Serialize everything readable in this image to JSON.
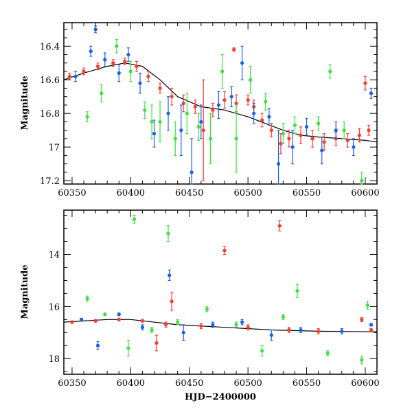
{
  "chart_data": [
    {
      "type": "scatter",
      "panel": "top",
      "title": "",
      "xlabel": "",
      "ylabel": "Magnitude",
      "xlim": [
        60343,
        60610
      ],
      "ylim": [
        17.22,
        16.26
      ],
      "y_inverted": true,
      "x_ticks": [
        60350,
        60400,
        60450,
        60500,
        60550,
        60600
      ],
      "x_tick_labels": [
        "60350",
        "60400",
        "60450",
        "60500",
        "60550",
        "60600"
      ],
      "y_ticks": [
        16.4,
        16.6,
        16.8,
        17.0,
        17.2
      ],
      "y_tick_labels": [
        "16.4",
        "16.6",
        "16.8",
        "17",
        "17.2"
      ],
      "grid": false,
      "trend": {
        "x": [
          60343,
          60360,
          60380,
          60395,
          60410,
          60425,
          60440,
          60460,
          60480,
          60500,
          60515,
          60530,
          60545,
          60560,
          60580,
          60600,
          60610
        ],
        "y": [
          16.6,
          16.56,
          16.52,
          16.5,
          16.52,
          16.6,
          16.7,
          16.76,
          16.78,
          16.82,
          16.86,
          16.9,
          16.93,
          16.94,
          16.95,
          16.96,
          16.97
        ]
      },
      "series": [
        {
          "color": "#ff3a2a",
          "points": [
            [
              60348,
              16.58,
              0.02
            ],
            [
              60360,
              16.55,
              0.02
            ],
            [
              60372,
              16.52,
              0.02
            ],
            [
              60385,
              16.5,
              0.02
            ],
            [
              60395,
              16.49,
              0.02
            ],
            [
              60405,
              16.52,
              0.03
            ],
            [
              60415,
              16.58,
              0.03
            ],
            [
              60425,
              16.65,
              0.03
            ],
            [
              60435,
              16.7,
              0.05
            ],
            [
              60445,
              16.74,
              0.05
            ],
            [
              60455,
              16.76,
              0.04
            ],
            [
              60462,
              16.9,
              0.3
            ],
            [
              60470,
              16.78,
              0.04
            ],
            [
              60480,
              16.72,
              0.05
            ],
            [
              60490,
              16.74,
              0.05
            ],
            [
              60500,
              16.72,
              0.03
            ],
            [
              60505,
              16.76,
              0.04
            ],
            [
              60512,
              16.84,
              0.04
            ],
            [
              60520,
              16.9,
              0.04
            ],
            [
              60528,
              16.98,
              0.06
            ],
            [
              60535,
              16.95,
              0.05
            ],
            [
              60545,
              16.93,
              0.05
            ],
            [
              60555,
              16.95,
              0.05
            ],
            [
              60565,
              16.97,
              0.05
            ],
            [
              60575,
              16.95,
              0.04
            ],
            [
              60585,
              16.96,
              0.04
            ],
            [
              60595,
              16.93,
              0.04
            ],
            [
              60600,
              16.62,
              0.04
            ],
            [
              60603,
              16.9,
              0.03
            ],
            [
              60488,
              16.42,
              0.01
            ]
          ]
        },
        {
          "color": "#1a5fe8",
          "points": [
            [
              60353,
              16.58,
              0.03
            ],
            [
              60366,
              16.43,
              0.03
            ],
            [
              60370,
              16.3,
              0.02
            ],
            [
              60378,
              16.48,
              0.04
            ],
            [
              60390,
              16.56,
              0.05
            ],
            [
              60398,
              16.45,
              0.04
            ],
            [
              60408,
              16.62,
              0.06
            ],
            [
              60420,
              16.92,
              0.08
            ],
            [
              60432,
              16.8,
              0.1
            ],
            [
              60443,
              16.9,
              0.15
            ],
            [
              60452,
              17.15,
              0.2
            ],
            [
              60460,
              16.85,
              0.1
            ],
            [
              60475,
              16.75,
              0.08
            ],
            [
              60486,
              16.7,
              0.06
            ],
            [
              60495,
              16.5,
              0.1
            ],
            [
              60505,
              16.8,
              0.06
            ],
            [
              60518,
              16.82,
              0.05
            ],
            [
              60526,
              17.1,
              0.2
            ],
            [
              60538,
              17.0,
              0.1
            ],
            [
              60550,
              16.88,
              0.05
            ],
            [
              60563,
              17.02,
              0.08
            ],
            [
              60575,
              16.9,
              0.05
            ],
            [
              60590,
              17.0,
              0.05
            ],
            [
              60605,
              16.68,
              0.03
            ]
          ]
        },
        {
          "color": "#3de03d",
          "points": [
            [
              60363,
              16.82,
              0.03
            ],
            [
              60375,
              16.68,
              0.05
            ],
            [
              60388,
              16.4,
              0.04
            ],
            [
              60400,
              16.55,
              0.06
            ],
            [
              60412,
              16.78,
              0.05
            ],
            [
              60418,
              16.85,
              0.1
            ],
            [
              60425,
              16.85,
              0.12
            ],
            [
              60438,
              16.95,
              0.1
            ],
            [
              60448,
              16.8,
              0.12
            ],
            [
              60458,
              16.88,
              0.08
            ],
            [
              60468,
              16.95,
              0.15
            ],
            [
              60478,
              16.55,
              0.1
            ],
            [
              60490,
              16.95,
              0.2
            ],
            [
              60502,
              16.6,
              0.08
            ],
            [
              60515,
              16.73,
              0.05
            ],
            [
              60530,
              16.92,
              0.06
            ],
            [
              60540,
              16.87,
              0.05
            ],
            [
              60560,
              16.86,
              0.04
            ],
            [
              60570,
              16.55,
              0.04
            ],
            [
              60582,
              16.9,
              0.05
            ],
            [
              60597,
              17.2,
              0.05
            ]
          ]
        }
      ]
    },
    {
      "type": "scatter",
      "panel": "bottom",
      "title": "",
      "xlabel": "HJD−2400000",
      "ylabel": "Magnitude",
      "xlim": [
        60343,
        60610
      ],
      "ylim": [
        18.6,
        12.3
      ],
      "y_inverted": true,
      "x_ticks": [
        60350,
        60400,
        60450,
        60500,
        60550,
        60600
      ],
      "x_tick_labels": [
        "60350",
        "60400",
        "60450",
        "60500",
        "60550",
        "60600"
      ],
      "y_ticks": [
        14,
        16,
        18
      ],
      "y_tick_labels": [
        "14",
        "16",
        "18"
      ],
      "grid": false,
      "trend": {
        "x": [
          60343,
          60380,
          60400,
          60440,
          60480,
          60520,
          60560,
          60610
        ],
        "y": [
          16.6,
          16.5,
          16.5,
          16.7,
          16.8,
          16.9,
          16.95,
          16.97
        ]
      },
      "series": [
        {
          "color": "#ff3a2a",
          "points": [
            [
              60350,
              16.6,
              0.05
            ],
            [
              60370,
              16.55,
              0.05
            ],
            [
              60390,
              16.5,
              0.05
            ],
            [
              60410,
              16.55,
              0.05
            ],
            [
              60422,
              17.4,
              0.3
            ],
            [
              60430,
              16.7,
              0.1
            ],
            [
              60435,
              15.8,
              0.35
            ],
            [
              60460,
              16.75,
              0.1
            ],
            [
              60480,
              13.85,
              0.15
            ],
            [
              60500,
              16.8,
              0.1
            ],
            [
              60527,
              12.9,
              0.2
            ],
            [
              60535,
              16.9,
              0.1
            ],
            [
              60560,
              16.95,
              0.1
            ],
            [
              60597,
              16.5,
              0.08
            ],
            [
              60605,
              16.9,
              0.05
            ]
          ]
        },
        {
          "color": "#1a5fe8",
          "points": [
            [
              60358,
              16.5,
              0.05
            ],
            [
              60372,
              17.5,
              0.15
            ],
            [
              60390,
              16.3,
              0.05
            ],
            [
              60410,
              16.8,
              0.1
            ],
            [
              60433,
              14.8,
              0.2
            ],
            [
              60445,
              17.0,
              0.3
            ],
            [
              60470,
              16.7,
              0.1
            ],
            [
              60495,
              16.6,
              0.1
            ],
            [
              60520,
              17.1,
              0.2
            ],
            [
              60545,
              16.9,
              0.1
            ],
            [
              60580,
              16.95,
              0.1
            ],
            [
              60605,
              16.7,
              0.05
            ]
          ]
        },
        {
          "color": "#3de03d",
          "points": [
            [
              60363,
              15.7,
              0.1
            ],
            [
              60378,
              16.3,
              0.05
            ],
            [
              60398,
              17.6,
              0.3
            ],
            [
              60403,
              12.65,
              0.15
            ],
            [
              60418,
              16.9,
              0.1
            ],
            [
              60432,
              13.2,
              0.3
            ],
            [
              60440,
              16.6,
              0.1
            ],
            [
              60465,
              16.1,
              0.1
            ],
            [
              60490,
              16.7,
              0.1
            ],
            [
              60512,
              17.7,
              0.2
            ],
            [
              60530,
              16.4,
              0.1
            ],
            [
              60542,
              15.4,
              0.25
            ],
            [
              60568,
              17.8,
              0.1
            ],
            [
              60597,
              18.05,
              0.15
            ],
            [
              60602,
              15.95,
              0.15
            ]
          ]
        }
      ]
    }
  ]
}
